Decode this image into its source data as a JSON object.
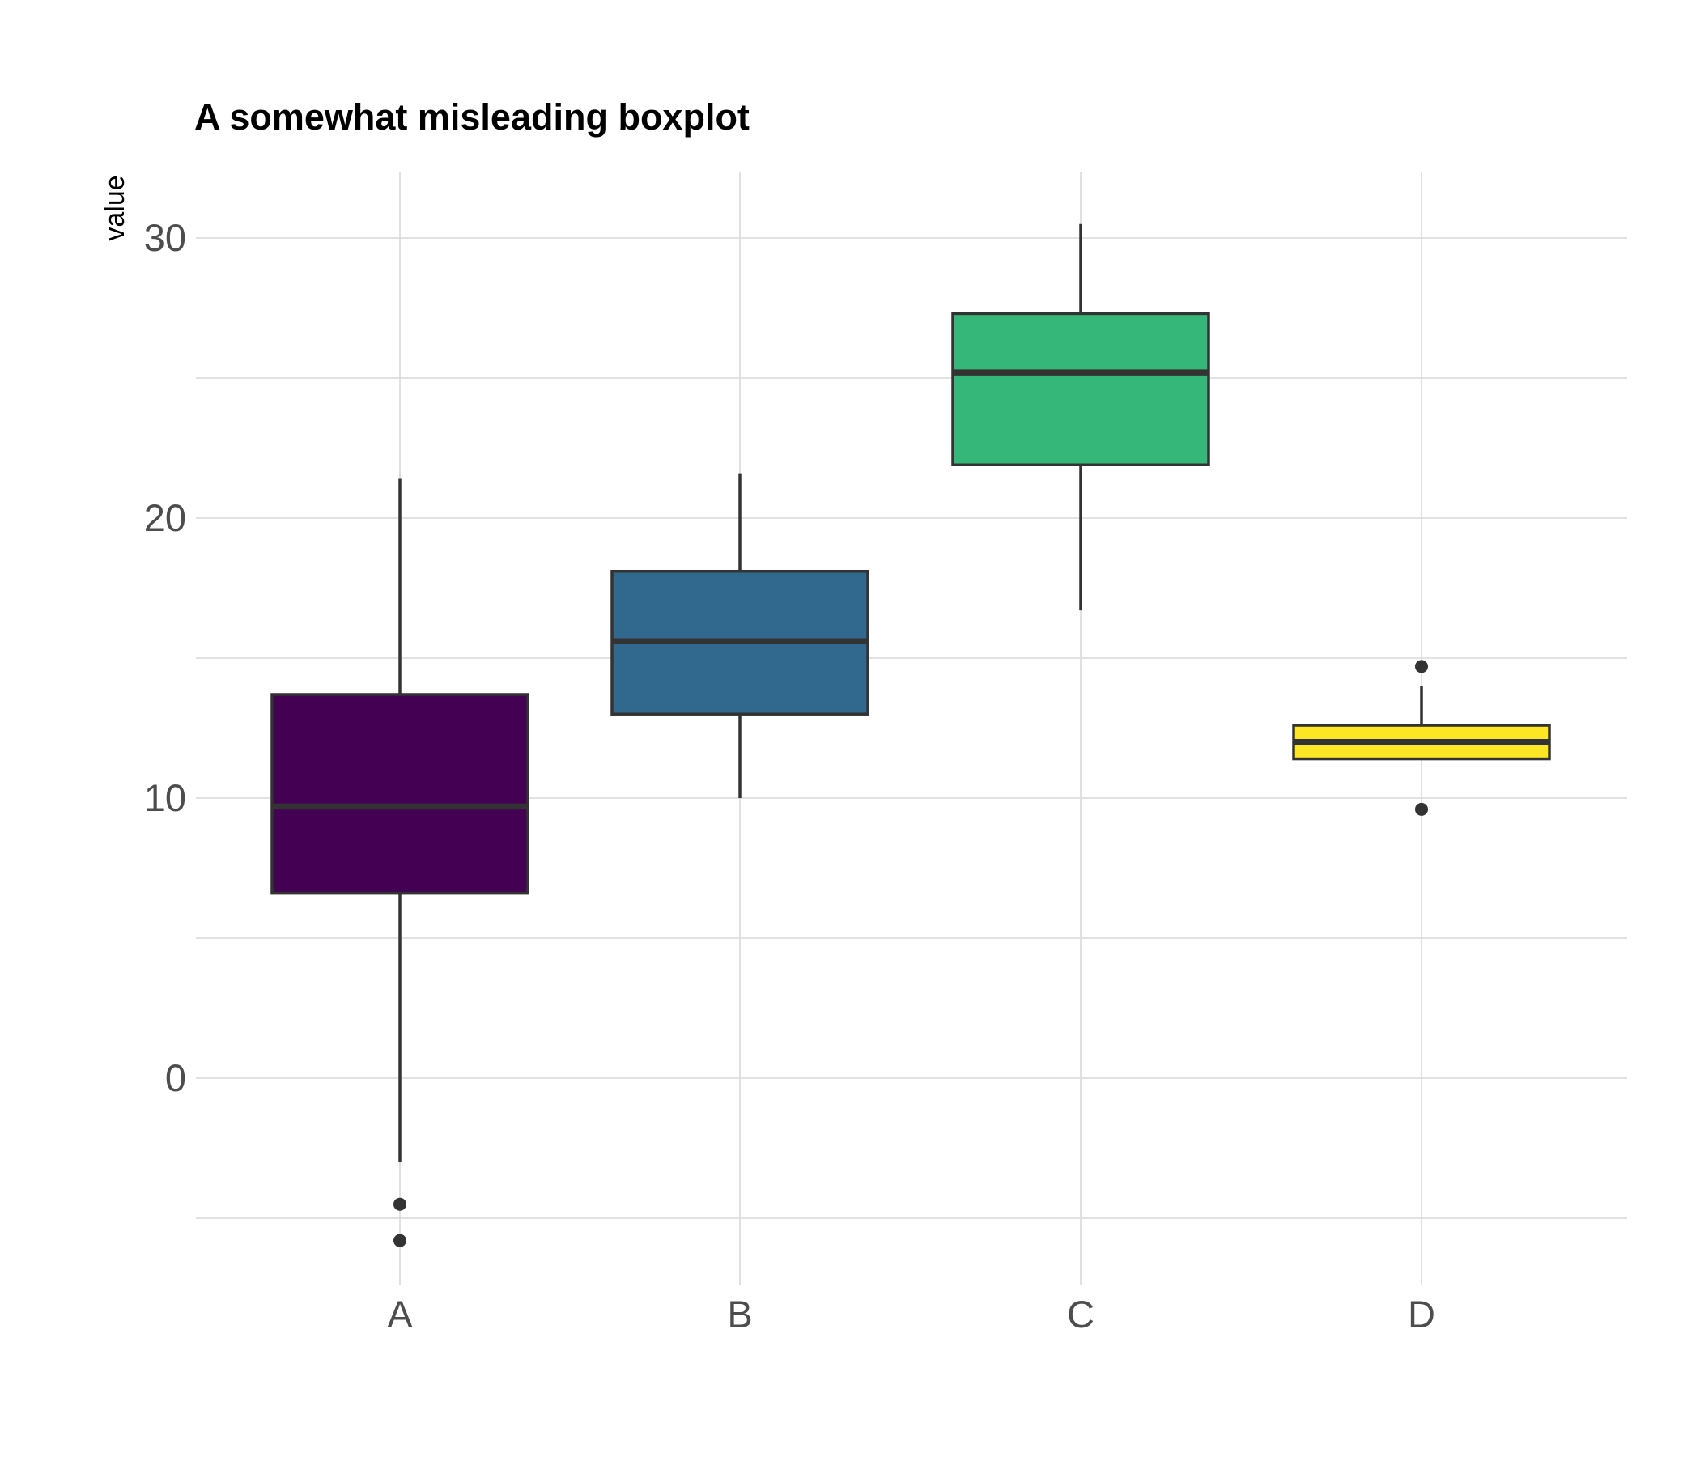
{
  "chart_data": {
    "type": "boxplot",
    "title": "A somewhat misleading boxplot",
    "xlabel": "",
    "ylabel": "value",
    "ylim": [
      -7,
      32.5
    ],
    "y_ticks": [
      0,
      10,
      20,
      30
    ],
    "y_minor_ticks": [
      -5,
      5,
      15,
      25
    ],
    "grid": true,
    "legend": "none",
    "categories": [
      "A",
      "B",
      "C",
      "D"
    ],
    "boxes": [
      {
        "name": "A",
        "color": "#440154",
        "whisker_low": -3,
        "q1": 6.6,
        "median": 9.7,
        "q3": 13.7,
        "whisker_high": 21.4,
        "outliers": [
          -4.5,
          -5.8
        ]
      },
      {
        "name": "B",
        "color": "#31688E",
        "whisker_low": 10.0,
        "q1": 13.0,
        "median": 15.6,
        "q3": 18.1,
        "whisker_high": 21.6,
        "outliers": []
      },
      {
        "name": "C",
        "color": "#35B779",
        "whisker_low": 16.7,
        "q1": 21.9,
        "median": 25.2,
        "q3": 27.3,
        "whisker_high": 30.5,
        "outliers": []
      },
      {
        "name": "D",
        "color": "#FDE725",
        "whisker_low": 11.4,
        "q1": 11.4,
        "median": 12.0,
        "q3": 12.6,
        "whisker_high": 14.0,
        "outliers": [
          14.7,
          9.6
        ]
      }
    ]
  }
}
